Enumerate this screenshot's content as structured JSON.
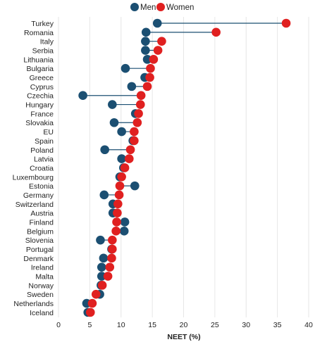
{
  "chart_data": {
    "type": "scatter",
    "xlabel": "NEET (%)",
    "xlim": [
      0,
      40
    ],
    "xticks": [
      0,
      5,
      10,
      15,
      20,
      25,
      30,
      35,
      40
    ],
    "xtick_labels": [
      "0",
      "5",
      "10",
      "15",
      "20",
      "25",
      "30",
      "35",
      "40"
    ],
    "grid": true,
    "legend_position": "top-center",
    "connector_color": "#1b4f72",
    "categories": [
      "Turkey",
      "Romania",
      "Italy",
      "Serbia",
      "Lithuania",
      "Bulgaria",
      "Greece",
      "Cyprus",
      "Czechia",
      "Hungary",
      "France",
      "Slovakia",
      "EU",
      "Spain",
      "Poland",
      "Latvia",
      "Croatia",
      "Luxembourg",
      "Estonia",
      "Germany",
      "Switzerland",
      "Austria",
      "Finland",
      "Belgium",
      "Slovenia",
      "Portugal",
      "Denmark",
      "Ireland",
      "Malta",
      "Norway",
      "Sweden",
      "Netherlands",
      "Iceland"
    ],
    "series": [
      {
        "name": "Men",
        "color": "#1b4f72",
        "values": [
          15.8,
          14,
          13.9,
          13.9,
          14.2,
          10.7,
          13.8,
          11.7,
          3.9,
          8.6,
          12.3,
          8.9,
          10.1,
          11.9,
          7.4,
          10.1,
          10.4,
          9.8,
          12.2,
          7.3,
          8.7,
          8.7,
          10.6,
          10.5,
          6.7,
          8.5,
          7.2,
          6.9,
          6.9,
          6.8,
          6.6,
          4.5,
          4.7
        ]
      },
      {
        "name": "Women",
        "color": "#e02020",
        "values": [
          36.4,
          25.2,
          16.5,
          15.9,
          15.2,
          14.7,
          14.6,
          14.2,
          13.2,
          13.1,
          12.8,
          12.6,
          12.1,
          12.1,
          11.5,
          11.3,
          10.6,
          10.1,
          9.8,
          9.7,
          9.5,
          9.4,
          9.3,
          9.2,
          8.6,
          8.6,
          8.5,
          8.2,
          7.9,
          7,
          6,
          5.4,
          5.1
        ]
      }
    ]
  }
}
